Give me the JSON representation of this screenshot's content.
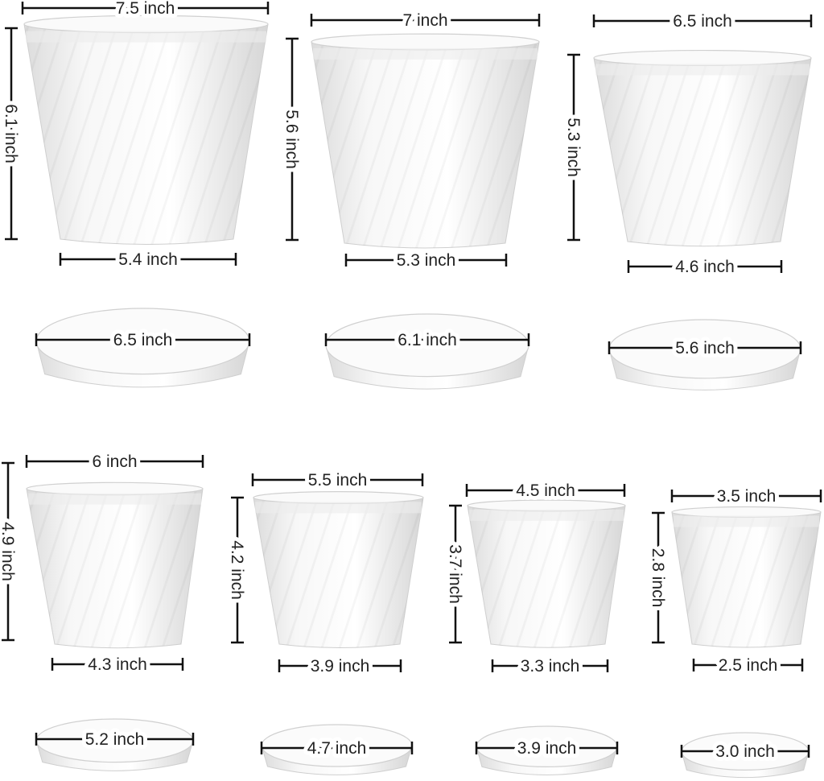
{
  "product": "White plastic planter pots with saucers, set of 7",
  "pots": [
    {
      "top_diameter": "7.5 inch",
      "height": "6.1 inch",
      "bottom_diameter": "5.4 inch",
      "saucer_diameter": "6.5 inch"
    },
    {
      "top_diameter": "7 inch",
      "height": "5.6 inch",
      "bottom_diameter": "5.3 inch",
      "saucer_diameter": "6.1 inch"
    },
    {
      "top_diameter": "6.5 inch",
      "height": "5.3 inch",
      "bottom_diameter": "4.6 inch",
      "saucer_diameter": "5.6 inch"
    },
    {
      "top_diameter": "6 inch",
      "height": "4.9 inch",
      "bottom_diameter": "4.3 inch",
      "saucer_diameter": "5.2 inch"
    },
    {
      "top_diameter": "5.5 inch",
      "height": "4.2 inch",
      "bottom_diameter": "3.9 inch",
      "saucer_diameter": "4.7 inch"
    },
    {
      "top_diameter": "4.5 inch",
      "height": "3.7 inch",
      "bottom_diameter": "3.3 inch",
      "saucer_diameter": "3.9 inch"
    },
    {
      "top_diameter": "3.5 inch",
      "height": "2.8 inch",
      "bottom_diameter": "2.5 inch",
      "saucer_diameter": "3.0 inch"
    }
  ],
  "colors": {
    "pot": "#f4f4f4",
    "shade": "#d9d9d9",
    "dimension_line": "#111111"
  }
}
